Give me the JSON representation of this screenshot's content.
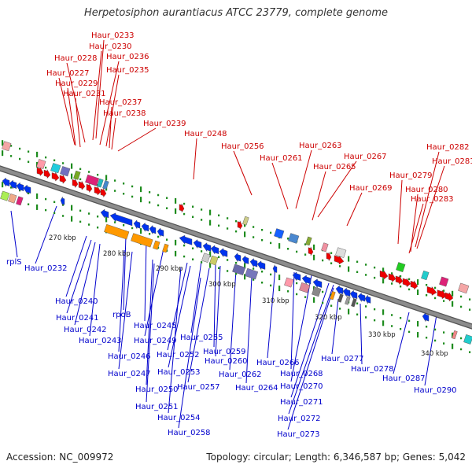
{
  "title": "Herpetosiphon aurantiacus ATCC 23779, complete genome",
  "footer": {
    "accession": "Accession: NC_009972",
    "topology": "Topology: circular; Length: 6,346,587 bp; Genes: 5,042"
  },
  "colors": {
    "forward_label": "#cc0000",
    "reverse_label": "#0000cc",
    "backbone": "#8c8c8c",
    "tick": "#1e8c1e"
  },
  "scale_labels": [
    "270 kbp",
    "280 kbp",
    "290 kbp",
    "300 kbp",
    "310 kbp",
    "320 kbp",
    "330 kbp",
    "340 kbp"
  ],
  "forward_labels": [
    "Haur_0233",
    "Haur_0230",
    "Haur_0228",
    "Haur_0236",
    "Haur_0227",
    "Haur_0235",
    "Haur_0229",
    "Haur_0231",
    "Haur_0237",
    "Haur_0238",
    "Haur_0239",
    "Haur_0248",
    "Haur_0256",
    "Haur_0263",
    "Haur_0261",
    "Haur_0267",
    "Haur_0265",
    "Haur_0282",
    "Haur_0281",
    "Haur_0279",
    "Haur_0269",
    "Haur_0280",
    "Haur_0283"
  ],
  "reverse_labels": [
    "rplS",
    "Haur_0232",
    "Haur_0240",
    "rpoB",
    "Haur_0241",
    "Haur_0245",
    "Haur_0242",
    "Haur_0243",
    "Haur_0249",
    "Haur_0255",
    "Haur_0246",
    "Haur_0252",
    "Haur_0259",
    "Haur_0260",
    "Haur_0247",
    "Haur_0253",
    "Haur_0266",
    "Haur_0262",
    "Haur_0268",
    "Haur_0250",
    "Haur_0257",
    "Haur_0264",
    "Haur_0270",
    "Haur_0277",
    "Haur_0278",
    "Haur_0287",
    "Haur_0251",
    "Haur_0271",
    "Haur_0290",
    "Haur_0254",
    "Haur_0272",
    "Haur_0258",
    "Haur_0273"
  ]
}
